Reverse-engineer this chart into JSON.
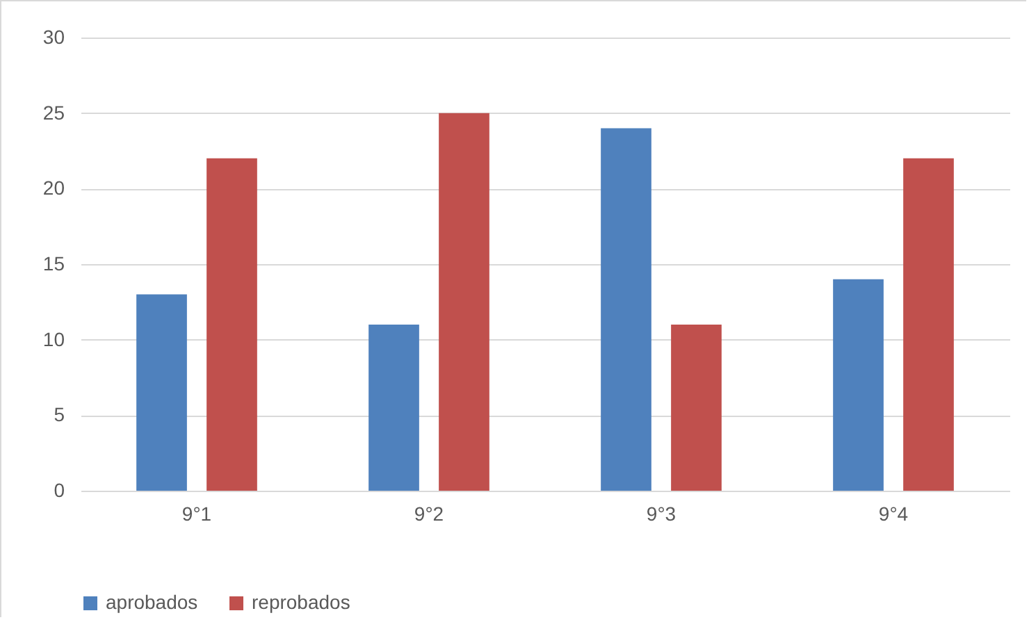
{
  "chart_data": {
    "type": "bar",
    "categories": [
      "9°1",
      "9°2",
      "9°3",
      "9°4"
    ],
    "series": [
      {
        "name": "aprobados",
        "color": "#4f81bd",
        "values": [
          13,
          11,
          24,
          14
        ]
      },
      {
        "name": "reprobados",
        "color": "#c0504d",
        "values": [
          22,
          25,
          11,
          22
        ]
      }
    ],
    "ylim": [
      0,
      30
    ],
    "yticks": [
      0,
      5,
      10,
      15,
      20,
      25,
      30
    ],
    "grid": "y",
    "legend": "bottom"
  }
}
